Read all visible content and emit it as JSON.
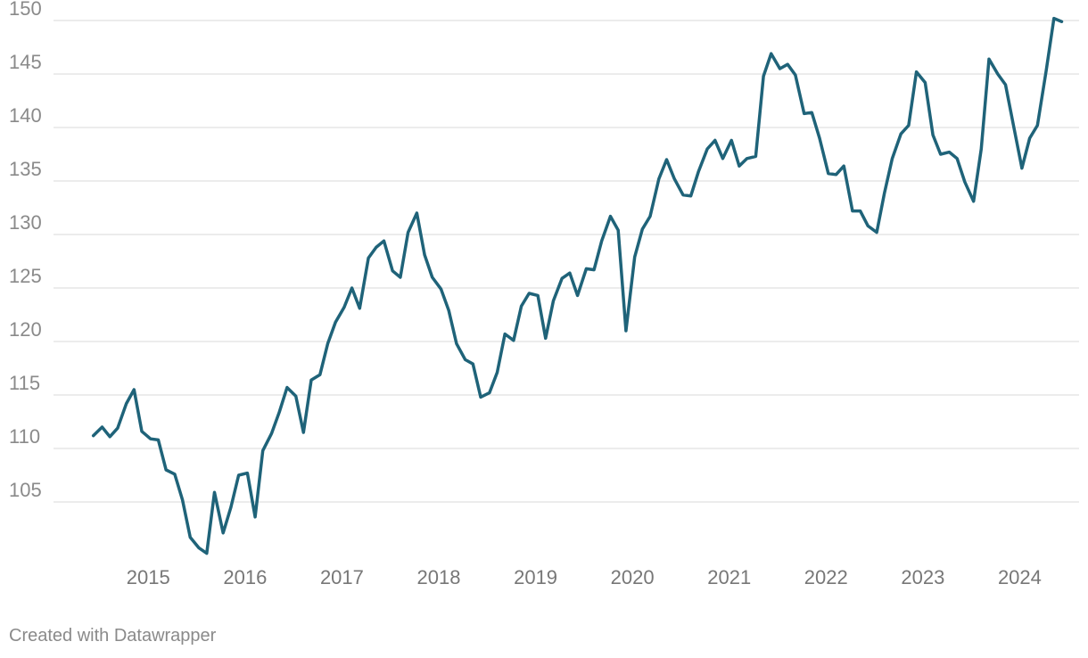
{
  "footer": {
    "credit": "Created with Datawrapper"
  },
  "colors": {
    "line": "#1f6379",
    "grid": "#d9d9d9",
    "tick_text": "#8a8a8a"
  },
  "chart_data": {
    "type": "line",
    "title": "",
    "xlabel": "",
    "ylabel": "",
    "ylim": [
      100,
      150
    ],
    "xlim": [
      2014.3,
      2024.8
    ],
    "grid": "horizontal",
    "y_ticks": [
      105,
      110,
      115,
      120,
      125,
      130,
      135,
      140,
      145,
      150
    ],
    "x_ticks": [
      2015,
      2016,
      2017,
      2018,
      2019,
      2020,
      2021,
      2022,
      2023,
      2024
    ],
    "series": [
      {
        "color": "#1f6379",
        "x": [
          2014.62,
          2014.71,
          2014.79,
          2014.87,
          2014.96,
          2015.04,
          2015.12,
          2015.21,
          2015.29,
          2015.37,
          2015.46,
          2015.54,
          2015.62,
          2015.71,
          2015.79,
          2015.87,
          2015.96,
          2016.04,
          2016.12,
          2016.21,
          2016.29,
          2016.37,
          2016.46,
          2016.54,
          2016.62,
          2016.71,
          2016.79,
          2016.87,
          2016.96,
          2017.04,
          2017.12,
          2017.21,
          2017.29,
          2017.37,
          2017.46,
          2017.54,
          2017.62,
          2017.71,
          2017.79,
          2017.87,
          2017.96,
          2018.04,
          2018.12,
          2018.21,
          2018.29,
          2018.37,
          2018.46,
          2018.54,
          2018.62,
          2018.71,
          2018.79,
          2018.87,
          2018.96,
          2019.04,
          2019.12,
          2019.21,
          2019.29,
          2019.37,
          2019.46,
          2019.54,
          2019.62,
          2019.71,
          2019.79,
          2019.87,
          2019.96,
          2020.04,
          2020.12,
          2020.21,
          2020.29,
          2020.37,
          2020.46,
          2020.54,
          2020.62,
          2020.71,
          2020.79,
          2020.87,
          2020.96,
          2021.04,
          2021.12,
          2021.21,
          2021.29,
          2021.37,
          2021.46,
          2021.54,
          2021.62,
          2021.71,
          2021.79,
          2021.87,
          2021.96,
          2022.04,
          2022.12,
          2022.21,
          2022.29,
          2022.37,
          2022.46,
          2022.54,
          2022.62,
          2022.71,
          2022.79,
          2022.87,
          2022.96,
          2023.04,
          2023.12,
          2023.21,
          2023.29,
          2023.37,
          2023.46,
          2023.54,
          2023.62,
          2023.71,
          2023.79,
          2023.87,
          2023.96,
          2024.04,
          2024.12,
          2024.21,
          2024.29,
          2024.37,
          2024.46,
          2024.54,
          2024.62
        ],
        "values": [
          111.2,
          112.0,
          111.1,
          111.9,
          114.2,
          115.5,
          111.6,
          110.9,
          110.8,
          108.0,
          107.6,
          105.2,
          101.7,
          100.7,
          100.2,
          105.9,
          102.1,
          104.5,
          107.5,
          107.7,
          103.6,
          109.8,
          111.4,
          113.4,
          115.7,
          114.9,
          111.5,
          116.4,
          116.9,
          119.8,
          121.8,
          123.2,
          125.0,
          123.1,
          127.8,
          128.8,
          129.4,
          126.6,
          126.0,
          130.2,
          132.0,
          128.1,
          126.0,
          124.9,
          122.9,
          119.8,
          118.3,
          117.9,
          114.8,
          115.2,
          117.1,
          120.7,
          120.1,
          123.3,
          124.5,
          124.3,
          120.3,
          123.8,
          125.9,
          126.4,
          124.3,
          126.8,
          126.7,
          129.4,
          131.7,
          130.4,
          121.0,
          127.9,
          130.5,
          131.7,
          135.2,
          137.0,
          135.2,
          133.7,
          133.6,
          135.9,
          138.0,
          138.8,
          137.1,
          138.8,
          136.4,
          137.1,
          137.3,
          144.8,
          146.9,
          145.5,
          145.9,
          144.9,
          141.3,
          141.4,
          139.0,
          135.7,
          135.6,
          136.4,
          132.2,
          132.2,
          130.8,
          130.2,
          133.9,
          137.1,
          139.4,
          140.2,
          145.2,
          144.2,
          139.3,
          137.5,
          137.7,
          137.1,
          134.9,
          133.1,
          138.0,
          146.4,
          145.0,
          144.0,
          140.3,
          136.2,
          139.0,
          140.2,
          145.3,
          150.2,
          149.9
        ]
      }
    ]
  }
}
